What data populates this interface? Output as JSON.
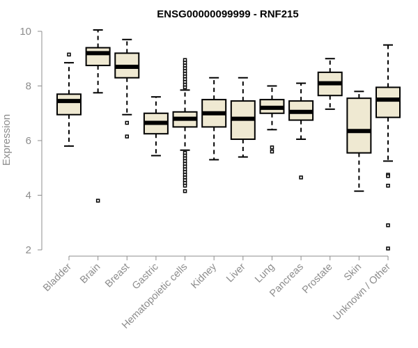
{
  "chart_data": {
    "type": "boxplot",
    "title": "ENSG00000099999 - RNF215",
    "ylabel": "Expression",
    "xlabel": "",
    "ylim": [
      2,
      10
    ],
    "yticks": [
      2,
      4,
      6,
      8,
      10
    ],
    "grid": false,
    "legend": "none",
    "box_fill": "#efe9d2",
    "box_stroke": "#000000",
    "axis_color": "#8c8c8c",
    "categories": [
      "Bladder",
      "Brain",
      "Breast",
      "Gastric",
      "Hematopoietic cells",
      "Kidney",
      "Liver",
      "Lung",
      "Pancreas",
      "Prostate",
      "Skin",
      "Unknown / Other"
    ],
    "boxes": [
      {
        "category": "Bladder",
        "whisker_low": 5.8,
        "q1": 6.95,
        "median": 7.45,
        "q3": 7.7,
        "whisker_high": 8.85,
        "outliers": [
          9.15
        ]
      },
      {
        "category": "Brain",
        "whisker_low": 7.75,
        "q1": 8.75,
        "median": 9.2,
        "q3": 9.4,
        "whisker_high": 10.05,
        "outliers": [
          3.8
        ]
      },
      {
        "category": "Breast",
        "whisker_low": 6.95,
        "q1": 8.3,
        "median": 8.7,
        "q3": 9.2,
        "whisker_high": 9.7,
        "outliers": [
          6.65,
          6.15
        ]
      },
      {
        "category": "Gastric",
        "whisker_low": 5.45,
        "q1": 6.25,
        "median": 6.65,
        "q3": 7.0,
        "whisker_high": 7.6,
        "outliers": []
      },
      {
        "category": "Hematopoietic cells",
        "whisker_low": 5.65,
        "q1": 6.5,
        "median": 6.8,
        "q3": 7.05,
        "whisker_high": 7.85,
        "outliers": [
          7.95,
          8.05,
          8.15,
          8.25,
          8.35,
          8.45,
          8.55,
          8.65,
          8.75,
          8.85,
          8.95,
          5.55,
          5.45,
          5.35,
          5.25,
          5.15,
          5.05,
          4.95,
          4.85,
          4.75,
          4.65,
          4.55,
          4.45,
          4.35,
          4.15
        ]
      },
      {
        "category": "Kidney",
        "whisker_low": 5.3,
        "q1": 6.5,
        "median": 7.0,
        "q3": 7.5,
        "whisker_high": 8.3,
        "outliers": []
      },
      {
        "category": "Liver",
        "whisker_low": 5.4,
        "q1": 6.05,
        "median": 6.8,
        "q3": 7.45,
        "whisker_high": 8.3,
        "outliers": []
      },
      {
        "category": "Lung",
        "whisker_low": 6.4,
        "q1": 7.0,
        "median": 7.2,
        "q3": 7.5,
        "whisker_high": 8.0,
        "outliers": [
          5.75,
          5.6
        ]
      },
      {
        "category": "Pancreas",
        "whisker_low": 6.05,
        "q1": 6.75,
        "median": 7.05,
        "q3": 7.45,
        "whisker_high": 8.1,
        "outliers": [
          4.65
        ]
      },
      {
        "category": "Prostate",
        "whisker_low": 7.15,
        "q1": 7.65,
        "median": 8.1,
        "q3": 8.5,
        "whisker_high": 9.0,
        "outliers": []
      },
      {
        "category": "Skin",
        "whisker_low": 4.15,
        "q1": 5.55,
        "median": 6.35,
        "q3": 7.55,
        "whisker_high": 7.8,
        "outliers": []
      },
      {
        "category": "Unknown / Other",
        "whisker_low": 5.25,
        "q1": 6.85,
        "median": 7.5,
        "q3": 7.95,
        "whisker_high": 9.5,
        "outliers": [
          4.75,
          4.7,
          4.35,
          2.9,
          2.05
        ]
      }
    ]
  }
}
